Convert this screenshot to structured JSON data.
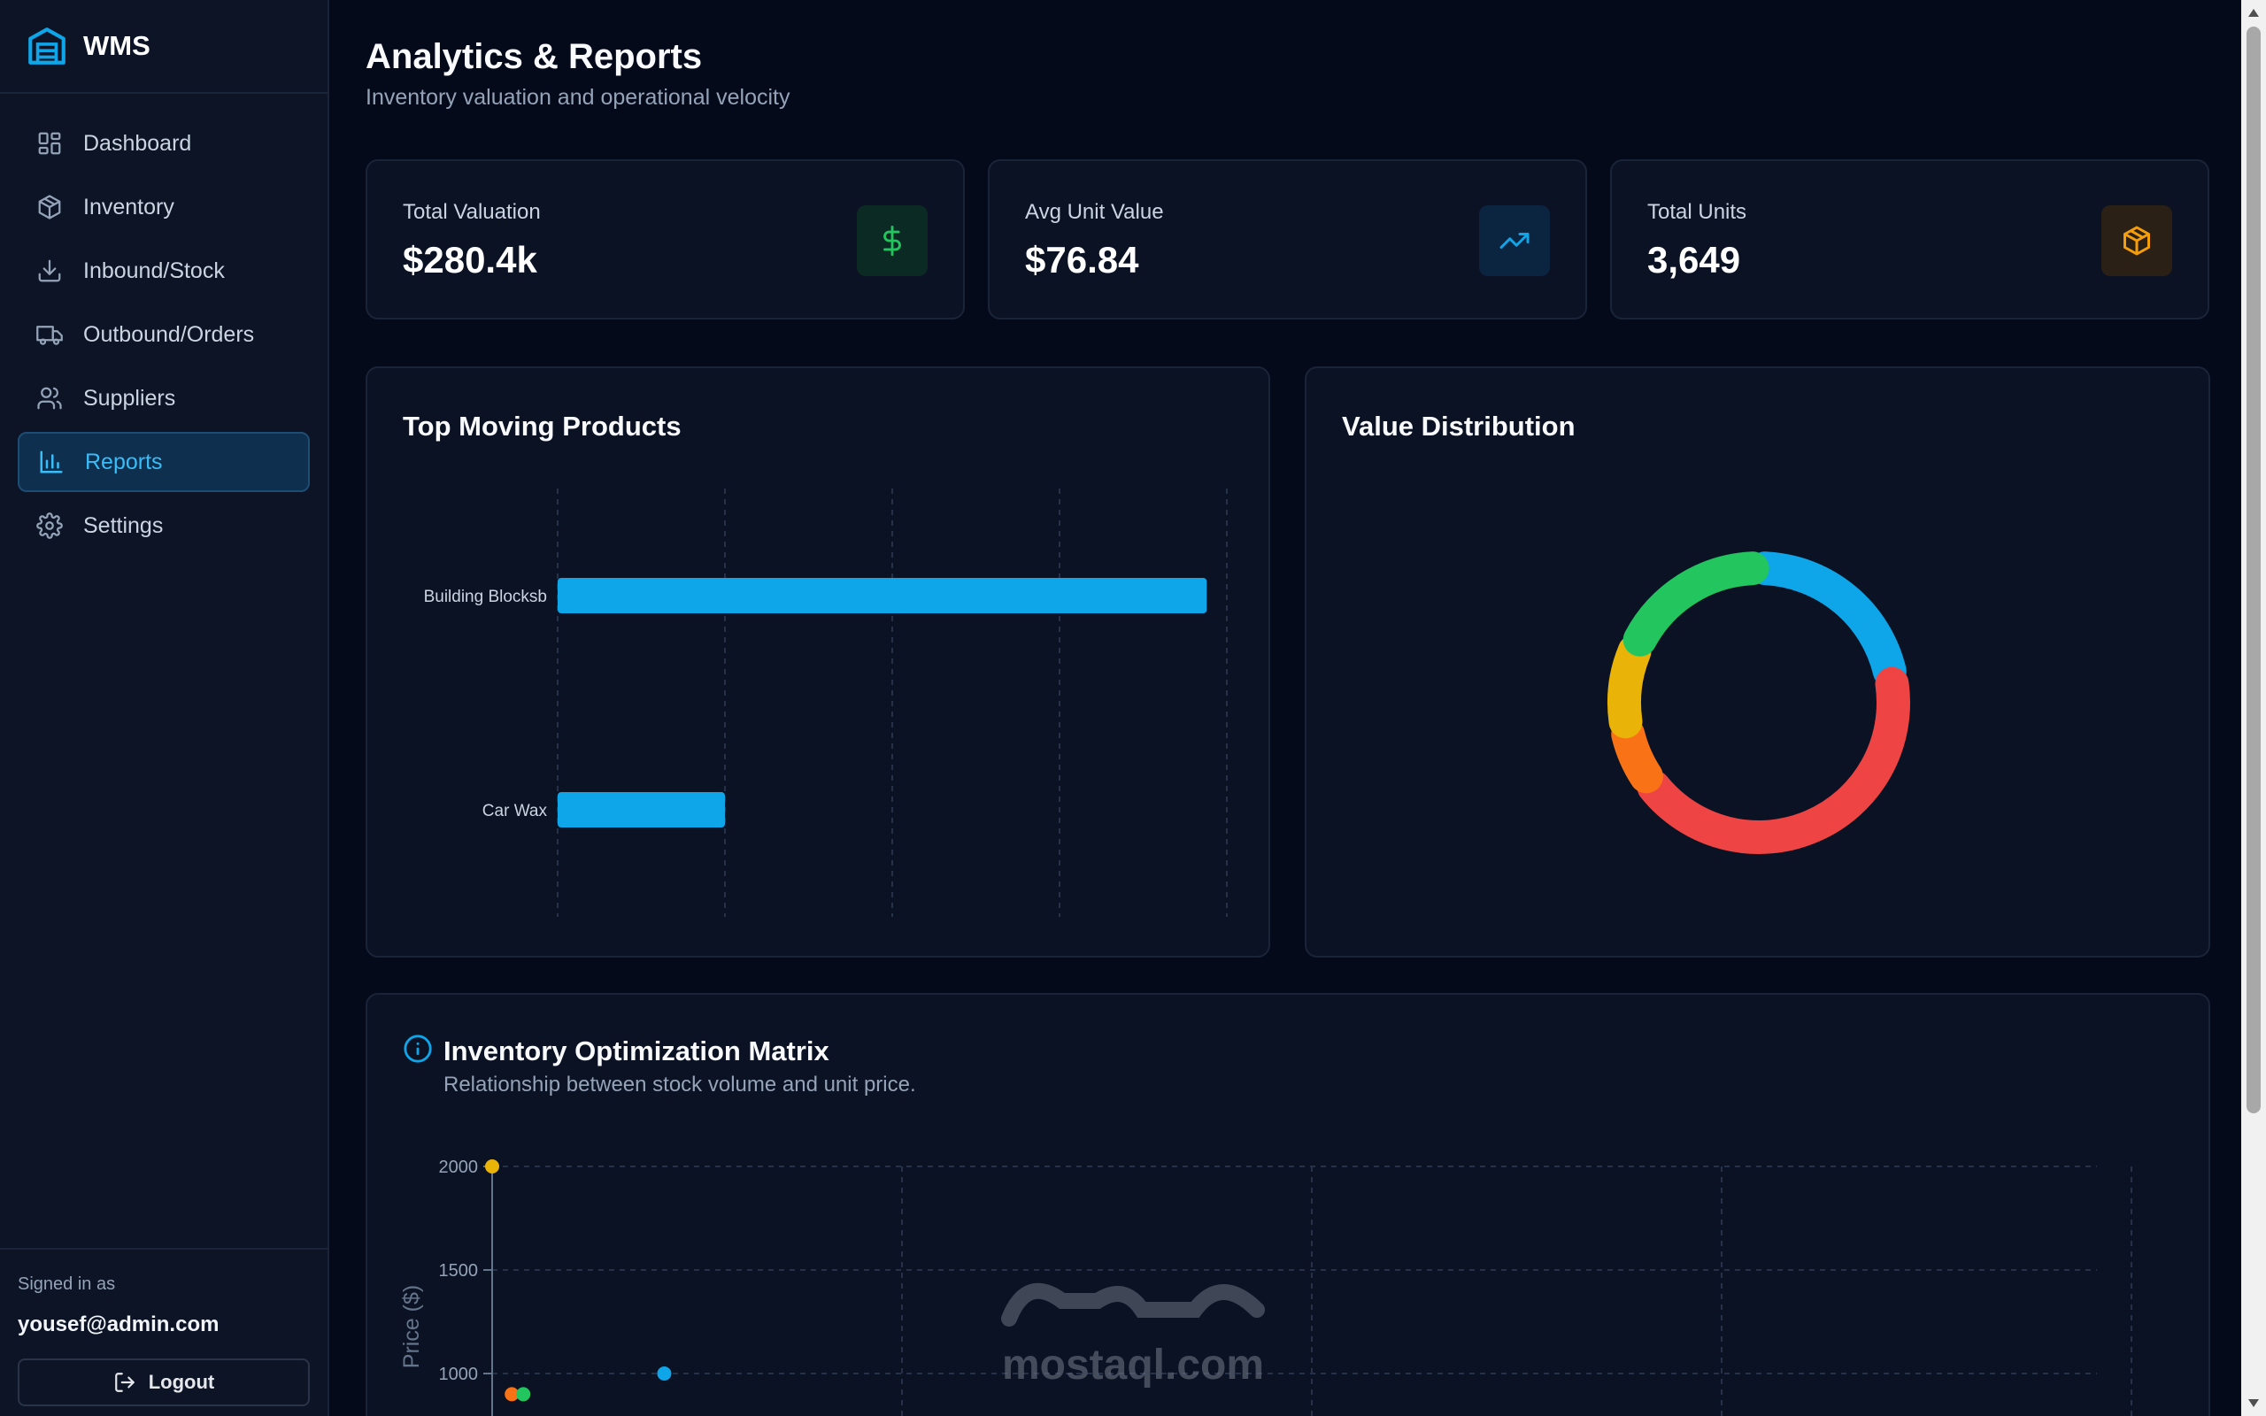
{
  "brand": {
    "title": "WMS"
  },
  "nav": {
    "items": [
      {
        "label": "Dashboard",
        "icon": "dashboard-icon",
        "active": false
      },
      {
        "label": "Inventory",
        "icon": "box-icon",
        "active": false
      },
      {
        "label": "Inbound/Stock",
        "icon": "download-icon",
        "active": false
      },
      {
        "label": "Outbound/Orders",
        "icon": "truck-icon",
        "active": false
      },
      {
        "label": "Suppliers",
        "icon": "users-icon",
        "active": false
      },
      {
        "label": "Reports",
        "icon": "bar-chart-icon",
        "active": true
      },
      {
        "label": "Settings",
        "icon": "gear-icon",
        "active": false
      }
    ]
  },
  "user": {
    "signed_in_label": "Signed in as",
    "email": "yousef@admin.com",
    "logout_label": "Logout"
  },
  "page": {
    "title": "Analytics & Reports",
    "subtitle": "Inventory valuation and operational velocity"
  },
  "stats": [
    {
      "label": "Total Valuation",
      "value": "$280.4k",
      "icon": "dollar-icon",
      "color": "#22c55e"
    },
    {
      "label": "Avg Unit Value",
      "value": "$76.84",
      "icon": "trending-up-icon",
      "color": "#0ea5e9"
    },
    {
      "label": "Total Units",
      "value": "3,649",
      "icon": "cube-icon",
      "color": "#f59e0b"
    }
  ],
  "top_moving": {
    "title": "Top Moving Products"
  },
  "value_distribution": {
    "title": "Value Distribution"
  },
  "matrix": {
    "title": "Inventory Optimization Matrix",
    "subtitle": "Relationship between stock volume and unit price."
  },
  "chart_data": [
    {
      "type": "bar",
      "orientation": "horizontal",
      "title": "Top Moving Products",
      "categories": [
        "Building Blocksb",
        "Car Wax"
      ],
      "values": [
        97,
        25
      ],
      "xlim": [
        0,
        100
      ],
      "grid": true,
      "color": "#0ea5e9"
    },
    {
      "type": "pie",
      "style": "donut",
      "title": "Value Distribution",
      "slices": [
        {
          "value": 22,
          "color": "#0ea5e9"
        },
        {
          "value": 43,
          "color": "#ef4444"
        },
        {
          "value": 7,
          "color": "#f97316"
        },
        {
          "value": 10,
          "color": "#eab308"
        },
        {
          "value": 18,
          "color": "#22c55e"
        }
      ]
    },
    {
      "type": "scatter",
      "title": "Inventory Optimization Matrix",
      "ylabel": "Price ($)",
      "yticks": [
        2000,
        1500,
        1000
      ],
      "ylim": [
        800,
        2000
      ],
      "xlim": [
        0,
        100
      ],
      "grid": true,
      "points": [
        {
          "x": 0,
          "y": 2000,
          "color": "#eab308"
        },
        {
          "x": 10.5,
          "y": 1000,
          "color": "#0ea5e9"
        },
        {
          "x": 1.2,
          "y": 900,
          "color": "#f97316"
        },
        {
          "x": 1.9,
          "y": 900,
          "color": "#22c55e"
        }
      ]
    }
  ]
}
